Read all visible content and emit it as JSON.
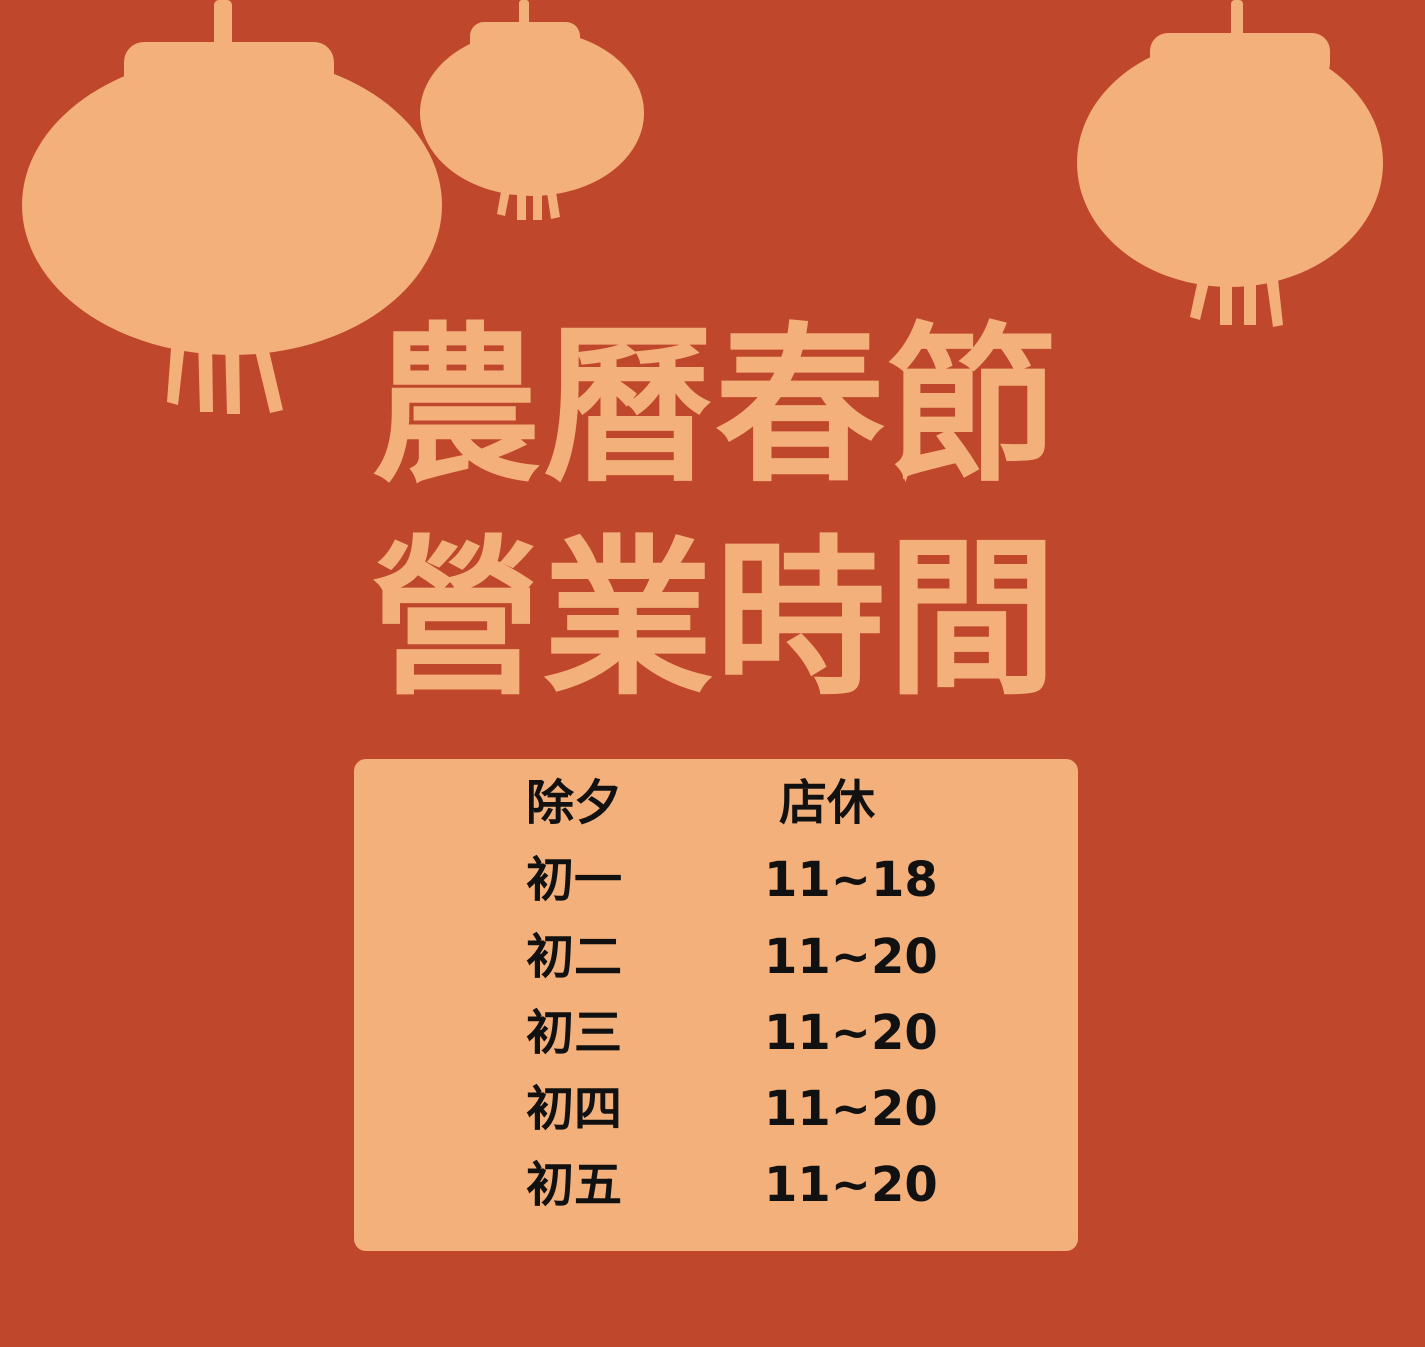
{
  "colors": {
    "background": "#bf482c",
    "accent": "#f4b07b",
    "text": "#111111"
  },
  "decorations": [
    {
      "name": "lantern-left-icon",
      "shape": "lantern"
    },
    {
      "name": "lantern-center-icon",
      "shape": "lantern"
    },
    {
      "name": "lantern-right-icon",
      "shape": "lantern"
    }
  ],
  "title": {
    "line1": "農曆春節",
    "line2": "營業時間"
  },
  "hours": [
    {
      "day": "除夕",
      "time": "店休"
    },
    {
      "day": "初一",
      "time": "11~18"
    },
    {
      "day": "初二",
      "time": "11~20"
    },
    {
      "day": "初三",
      "time": "11~20"
    },
    {
      "day": "初四",
      "time": "11~20"
    },
    {
      "day": "初五",
      "time": "11~20"
    }
  ]
}
